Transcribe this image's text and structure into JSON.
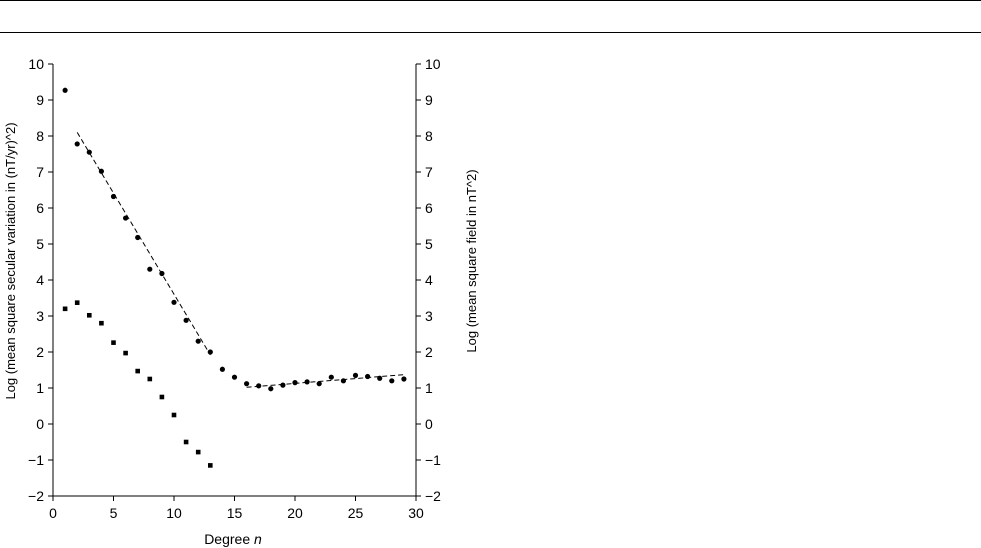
{
  "chart_data": {
    "type": "scatter",
    "xlabel": "Degree",
    "xlabel_var": "n",
    "ylabel_left": "Log (mean square secular variation in (nT/yr)^2)",
    "ylabel_right": "Log (mean square field in nT^2)",
    "xlim": [
      0,
      30
    ],
    "ylim": [
      -2,
      10
    ],
    "xticks": [
      0,
      5,
      10,
      15,
      20,
      25,
      30
    ],
    "yticks": [
      -2,
      -1,
      0,
      1,
      2,
      3,
      4,
      5,
      6,
      7,
      8,
      9,
      10
    ],
    "grid": false,
    "series": [
      {
        "marker": "circle",
        "x": [
          1,
          2,
          3,
          4,
          5,
          6,
          7,
          8,
          9,
          10,
          11,
          12,
          13,
          14,
          15,
          16,
          17,
          18,
          19,
          20,
          21,
          22,
          23,
          24,
          25,
          26,
          27,
          28,
          29
        ],
        "y": [
          9.27,
          7.78,
          7.55,
          7.02,
          6.32,
          5.72,
          5.18,
          4.3,
          4.18,
          3.38,
          2.88,
          2.3,
          2.0,
          1.52,
          1.3,
          1.12,
          1.06,
          0.98,
          1.08,
          1.15,
          1.17,
          1.12,
          1.3,
          1.2,
          1.35,
          1.32,
          1.27,
          1.2,
          1.25
        ]
      },
      {
        "marker": "square",
        "x": [
          1,
          2,
          3,
          4,
          5,
          6,
          7,
          8,
          9,
          10,
          11,
          12,
          13
        ],
        "y": [
          3.2,
          3.37,
          3.02,
          2.8,
          2.26,
          1.97,
          1.47,
          1.25,
          0.75,
          0.25,
          -0.5,
          -0.78,
          -1.15
        ]
      }
    ],
    "fit_lines": [
      {
        "style": "dashed",
        "x": [
          2,
          13
        ],
        "y": [
          8.1,
          1.92
        ]
      },
      {
        "style": "dashed",
        "x": [
          16,
          29
        ],
        "y": [
          1.02,
          1.37
        ]
      }
    ]
  }
}
